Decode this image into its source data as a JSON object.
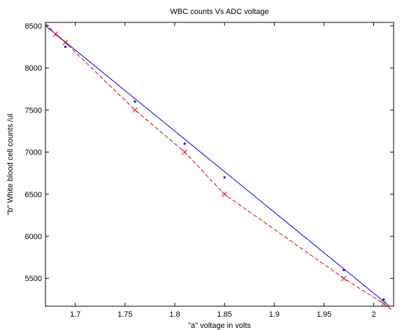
{
  "chart_data": {
    "type": "line",
    "title": "WBC counts Vs ADC voltage",
    "xlabel": "\"a\" voltage in volts",
    "ylabel": "\"b\" White blood cell counts /ul",
    "xlim": [
      1.67,
      2.02
    ],
    "ylim": [
      5170,
      8540
    ],
    "xticks": [
      1.7,
      1.75,
      1.8,
      1.85,
      1.9,
      1.95,
      2
    ],
    "xtick_labels": [
      "1.7",
      "1.75",
      "1.8",
      "1.85",
      "1.9",
      "1.95",
      "2"
    ],
    "yticks": [
      5500,
      6000,
      6500,
      7000,
      7500,
      8000,
      8500
    ],
    "ytick_labels": [
      "5500",
      "6000",
      "6500",
      "7000",
      "7500",
      "8000",
      "8500"
    ],
    "grid": false,
    "series": [
      {
        "color": "#0000ff",
        "line_style": "solid",
        "marker": "dot",
        "line_x": [
          1.67,
          2.016
        ],
        "line_y": [
          8500,
          5170
        ],
        "marker_x": [
          1.69,
          1.76,
          1.81,
          1.85,
          1.97,
          2.01
        ],
        "marker_y": [
          8250,
          7600,
          7100,
          6700,
          5600,
          5250
        ]
      },
      {
        "color": "#dd0000",
        "line_style": "dashed",
        "marker": "x",
        "x": [
          1.67,
          1.68,
          1.69,
          1.76,
          1.81,
          1.85,
          1.97,
          2.01,
          2.018
        ],
        "y": [
          8530,
          8400,
          8300,
          7500,
          7000,
          6500,
          5500,
          5200,
          5130
        ],
        "marker_x": [
          1.68,
          1.69,
          1.76,
          1.81,
          1.85,
          1.97,
          2.01
        ],
        "marker_y": [
          8400,
          8300,
          7500,
          7000,
          6500,
          5500,
          5200
        ]
      }
    ]
  }
}
